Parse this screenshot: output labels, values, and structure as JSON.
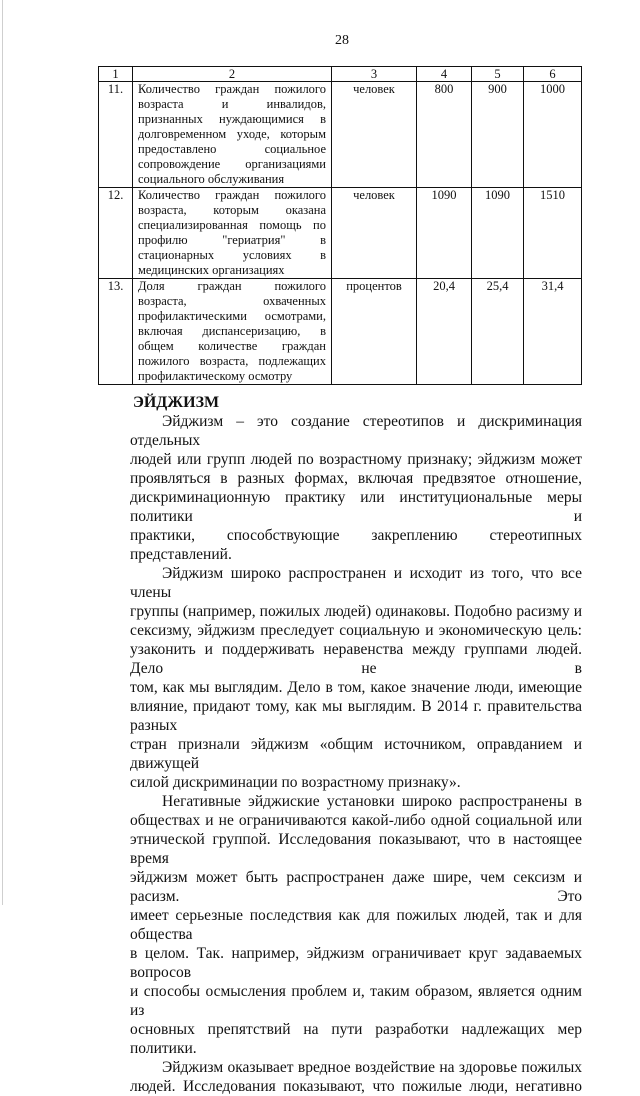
{
  "page_number": "28",
  "table": {
    "header": [
      "1",
      "2",
      "3",
      "4",
      "5",
      "6"
    ],
    "rows": [
      {
        "num": "11.",
        "lines": [
          "Количество граждан пожилого",
          "возраста и инвалидов,",
          "признанных нуждающимися в",
          "долговременном уходе, которым",
          "предоставлено социальное",
          "сопровождение организациями",
          "социального обслуживания"
        ],
        "unit": "человек",
        "v4": "800",
        "v5": "900",
        "v6": "1000"
      },
      {
        "num": "12.",
        "lines": [
          "Количество граждан пожилого",
          "возраста, которым оказана",
          "специализированная помощь по",
          "профилю \"гериатрия\" в",
          "стационарных условиях в",
          "медицинских организациях"
        ],
        "unit": "человек",
        "v4": "1090",
        "v5": "1090",
        "v6": "1510"
      },
      {
        "num": "13.",
        "lines": [
          "Доля граждан пожилого",
          "возраста, охваченных",
          "профилактическими осмотрами,",
          "включая диспансеризацию, в",
          "общем количестве граждан",
          "пожилого возраста, подлежащих",
          "профилактическому осмотру"
        ],
        "unit": "процентов",
        "v4": "20,4",
        "v5": "25,4",
        "v6": "31,4"
      }
    ]
  },
  "section": {
    "heading": "ЭЙДЖИЗМ",
    "paragraphs": [
      [
        "Эйджизм – это создание стереотипов и дискриминация отдельных",
        "людей или групп людей по возрастному признаку; эйджизм может",
        "проявляться в разных формах, включая предвзятое отношение,",
        "дискриминационную практику или институциональные меры политики и",
        "практики, способствующие закреплению стереотипных представлений."
      ],
      [
        "Эйджизм широко распространен и исходит из того, что все члены",
        "группы (например, пожилых людей) одинаковы. Подобно расизму и",
        "сексизму, эйджизм преследует социальную и экономическую цель:",
        "узаконить и поддерживать неравенства между группами людей. Дело не в",
        "том, как мы выглядим. Дело в том, какое значение люди, имеющие",
        "влияние, придают тому, как мы выглядим. В 2014 г. правительства разных",
        "стран признали эйджизм «общим источником, оправданием и движущей",
        "силой дискриминации по возрастному признаку»."
      ],
      [
        "Негативные эйджиские установки широко распространены в",
        "обществах и не ограничиваются какой-либо одной социальной или",
        "этнической группой. Исследования показывают, что в настоящее время",
        "эйджизм может быть распространен даже шире, чем сексизм и расизм. Это",
        "имеет серьезные последствия как для пожилых людей, так и для общества",
        "в целом. Так. например, эйджизм ограничивает круг задаваемых вопросов",
        "и способы осмысления проблем и, таким образом, является одним из",
        "основных препятствий на пути разработки надлежащих мер политики."
      ],
      [
        "Эйджизм оказывает вредное воздействие на здоровье пожилых",
        "людей. Исследования показывают, что пожилые люди, негативно"
      ]
    ]
  }
}
